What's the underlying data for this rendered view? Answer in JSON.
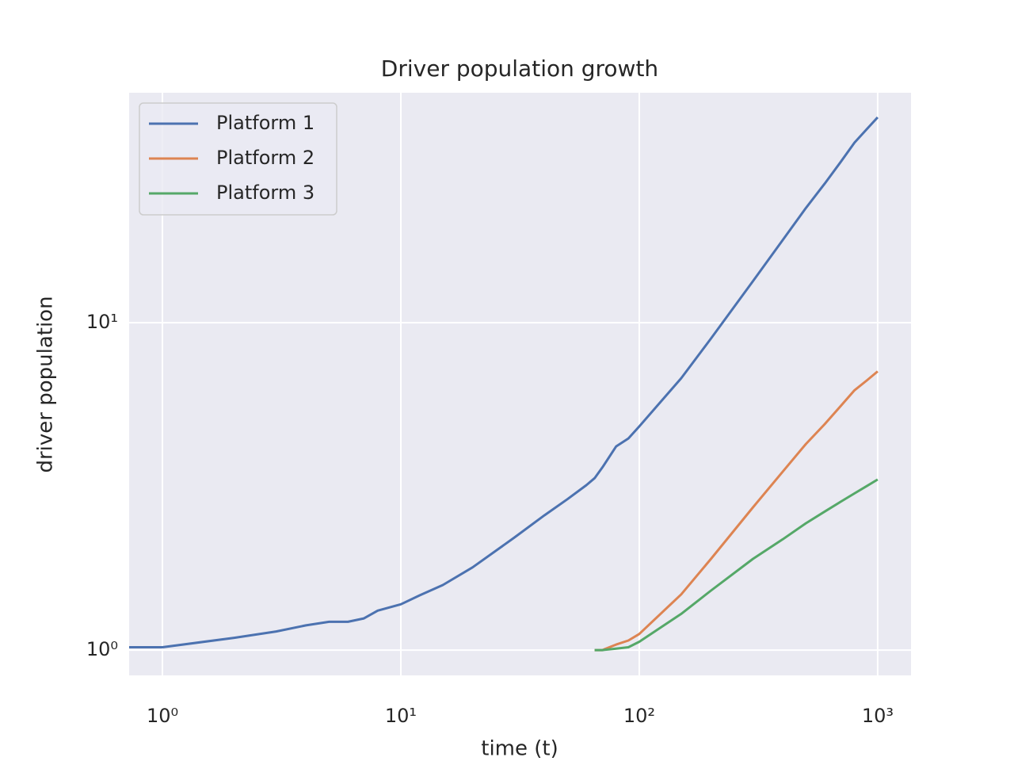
{
  "chart_data": {
    "type": "line",
    "title": "Driver population growth",
    "xlabel": "time (t)",
    "ylabel": "driver population",
    "xscale": "log",
    "yscale": "log",
    "grid": true,
    "legend": "upper left",
    "xlim": [
      0.725,
      1380
    ],
    "ylim": [
      0.837,
      50.4
    ],
    "xticks": [
      {
        "value": 1,
        "label": "10⁰"
      },
      {
        "value": 10,
        "label": "10¹"
      },
      {
        "value": 100,
        "label": "10²"
      },
      {
        "value": 1000,
        "label": "10³"
      }
    ],
    "yticks": [
      {
        "value": 1,
        "label": "10⁰"
      },
      {
        "value": 10,
        "label": "10¹"
      }
    ],
    "x": [
      0.5,
      1,
      2,
      3,
      4,
      5,
      6,
      7,
      8,
      10,
      12,
      15,
      20,
      25,
      30,
      40,
      50,
      60,
      65,
      70,
      80,
      90,
      100,
      150,
      200,
      300,
      400,
      500,
      600,
      700,
      800,
      900,
      1000
    ],
    "series": [
      {
        "name": "Platform 1",
        "color": "#4c72b0",
        "values": [
          1.02,
          1.02,
          1.09,
          1.14,
          1.19,
          1.22,
          1.22,
          1.25,
          1.32,
          1.38,
          1.47,
          1.58,
          1.79,
          2.01,
          2.21,
          2.58,
          2.89,
          3.19,
          3.35,
          3.61,
          4.19,
          4.43,
          4.82,
          6.77,
          8.95,
          13.4,
          17.9,
          22.4,
          26.6,
          31.0,
          35.5,
          39.0,
          42.4
        ]
      },
      {
        "name": "Platform 2",
        "color": "#dd8452",
        "values": [
          null,
          null,
          null,
          null,
          null,
          null,
          null,
          null,
          null,
          null,
          null,
          null,
          null,
          null,
          null,
          null,
          null,
          null,
          1.0,
          1.0,
          1.04,
          1.07,
          1.12,
          1.48,
          1.9,
          2.73,
          3.51,
          4.26,
          4.9,
          5.57,
          6.22,
          6.66,
          7.1
        ]
      },
      {
        "name": "Platform 3",
        "color": "#55a868",
        "values": [
          null,
          null,
          null,
          null,
          null,
          null,
          null,
          null,
          null,
          null,
          null,
          null,
          null,
          null,
          null,
          null,
          null,
          null,
          1.0,
          1.0,
          1.01,
          1.02,
          1.06,
          1.29,
          1.52,
          1.9,
          2.18,
          2.44,
          2.65,
          2.84,
          3.01,
          3.17,
          3.32
        ]
      }
    ]
  }
}
